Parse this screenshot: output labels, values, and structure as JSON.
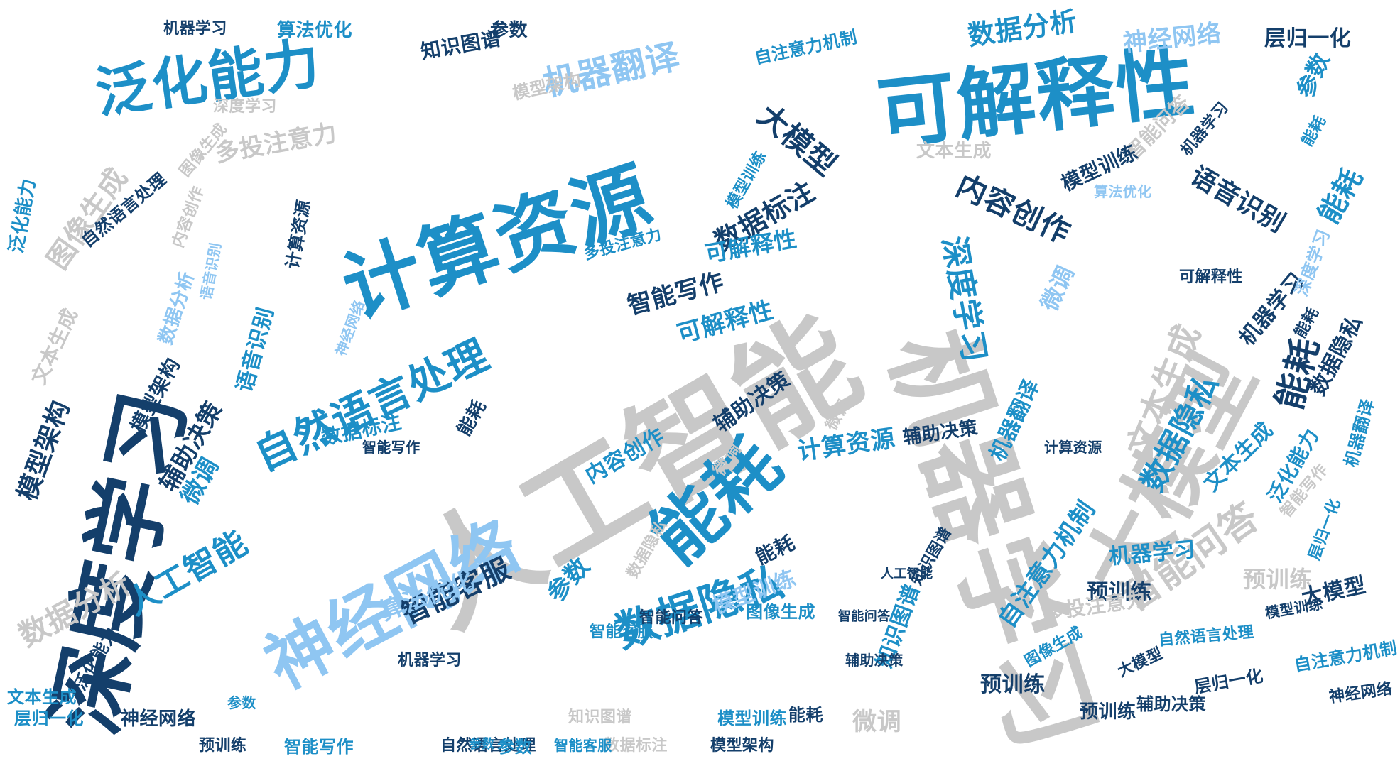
{
  "words": [
    {
      "text": "人工智能",
      "color": "#c8c8c8"
    },
    {
      "text": "机器学习",
      "color": "#c8c8c8"
    },
    {
      "text": "深度学习",
      "color": "#143f6b"
    },
    {
      "text": "计算资源",
      "color": "#1d8fc7"
    },
    {
      "text": "可解释性",
      "color": "#1d8fc7"
    },
    {
      "text": "大模型",
      "color": "#c8c8c8"
    },
    {
      "text": "神经网络",
      "color": "#8fc6f2"
    },
    {
      "text": "泛化能力",
      "color": "#1d8fc7"
    },
    {
      "text": "能耗",
      "color": "#1d8fc7"
    },
    {
      "text": "自然语言处理",
      "color": "#1d8fc7"
    },
    {
      "text": "数据隐私",
      "color": "#1d8fc7"
    },
    {
      "text": "机器翻译",
      "color": "#8fc6f2"
    },
    {
      "text": "内容创作",
      "color": "#143f6b"
    },
    {
      "text": "大模型",
      "color": "#143f6b"
    },
    {
      "text": "数据分析",
      "color": "#1d8fc7"
    },
    {
      "text": "神经网络",
      "color": "#8fc6f2"
    },
    {
      "text": "智能问答",
      "color": "#c8c8c8"
    },
    {
      "text": "文本生成",
      "color": "#c8c8c8"
    },
    {
      "text": "图像生成",
      "color": "#c8c8c8"
    },
    {
      "text": "数据标注",
      "color": "#143f6b"
    },
    {
      "text": "数据隐私",
      "color": "#1d8fc7"
    },
    {
      "text": "深度学习",
      "color": "#1d8fc7"
    },
    {
      "text": "能耗",
      "color": "#143f6b"
    },
    {
      "text": "语音识别",
      "color": "#143f6b"
    },
    {
      "text": "模型架构",
      "color": "#143f6b"
    },
    {
      "text": "智能写作",
      "color": "#143f6b"
    },
    {
      "text": "可解释性",
      "color": "#1d8fc7"
    },
    {
      "text": "可解释性",
      "color": "#1d8fc7"
    },
    {
      "text": "计算资源",
      "color": "#1d8fc7"
    },
    {
      "text": "智能客服",
      "color": "#143f6b"
    },
    {
      "text": "人工智能",
      "color": "#1d8fc7"
    },
    {
      "text": "微调",
      "color": "#1d8fc7"
    },
    {
      "text": "数据分析",
      "color": "#c8c8c8"
    },
    {
      "text": "多投注意力",
      "color": "#c8c8c8"
    },
    {
      "text": "辅助决策",
      "color": "#143f6b"
    },
    {
      "text": "自注意力机制",
      "color": "#1d8fc7"
    },
    {
      "text": "预训练",
      "color": "#143f6b"
    },
    {
      "text": "预训练",
      "color": "#c8c8c8"
    },
    {
      "text": "模型训练",
      "color": "#8fc6f2"
    },
    {
      "text": "算法优化",
      "color": "#8fc6f2"
    },
    {
      "text": "参数",
      "color": "#1d8fc7"
    },
    {
      "text": "参数",
      "color": "#1d8fc7"
    },
    {
      "text": "知识图谱",
      "color": "#143f6b"
    },
    {
      "text": "层归一化",
      "color": "#143f6b"
    },
    {
      "text": "机器学习",
      "color": "#143f6b"
    },
    {
      "text": "算法优化",
      "color": "#1d8fc7"
    },
    {
      "text": "参数",
      "color": "#143f6b"
    },
    {
      "text": "模型架构",
      "color": "#c8c8c8"
    },
    {
      "text": "深度学习",
      "color": "#c8c8c8"
    },
    {
      "text": "图像生成",
      "color": "#c8c8c8"
    },
    {
      "text": "泛化能力",
      "color": "#1d8fc7"
    },
    {
      "text": "自然语言处理",
      "color": "#143f6b"
    },
    {
      "text": "计算资源",
      "color": "#143f6b"
    },
    {
      "text": "语音识别",
      "color": "#1d8fc7"
    },
    {
      "text": "文本生成",
      "color": "#c8c8c8"
    },
    {
      "text": "模型架构",
      "color": "#143f6b"
    },
    {
      "text": "辅助决策",
      "color": "#143f6b"
    },
    {
      "text": "微调",
      "color": "#8fc6f2"
    },
    {
      "text": "微调",
      "color": "#c8c8c8"
    },
    {
      "text": "智能问答",
      "color": "#c8c8c8"
    },
    {
      "text": "数据标注",
      "color": "#1d8fc7"
    },
    {
      "text": "智能写作",
      "color": "#143f6b"
    },
    {
      "text": "能耗",
      "color": "#1d8fc7"
    },
    {
      "text": "数据隐私",
      "color": "#143f6b"
    },
    {
      "text": "机器翻译",
      "color": "#1d8fc7"
    },
    {
      "text": "文本生成",
      "color": "#c8c8c8"
    },
    {
      "text": "能耗",
      "color": "#143f6b"
    },
    {
      "text": "机器学习",
      "color": "#143f6b"
    },
    {
      "text": "大模型",
      "color": "#143f6b"
    },
    {
      "text": "多投注意力",
      "color": "#c8c8c8"
    },
    {
      "text": "机器学习",
      "color": "#1d8fc7"
    },
    {
      "text": "预训练",
      "color": "#143f6b"
    },
    {
      "text": "神经网络",
      "color": "#143f6b"
    },
    {
      "text": "层归一化",
      "color": "#1d8fc7"
    },
    {
      "text": "微调",
      "color": "#c8c8c8"
    },
    {
      "text": "能耗",
      "color": "#143f6b"
    },
    {
      "text": "预训练",
      "color": "#143f6b"
    },
    {
      "text": "文本生成",
      "color": "#1d8fc7"
    },
    {
      "text": "辅助决策",
      "color": "#143f6b"
    },
    {
      "text": "自然语言处理",
      "color": "#1d8fc7"
    },
    {
      "text": "知识图谱",
      "color": "#1d8fc7"
    },
    {
      "text": "内容创作",
      "color": "#1d8fc7"
    },
    {
      "text": "智能客服",
      "color": "#1d8fc7"
    },
    {
      "text": "图像生成",
      "color": "#1d8fc7"
    },
    {
      "text": "参数",
      "color": "#1d8fc7"
    },
    {
      "text": "智能问答",
      "color": "#143f6b"
    },
    {
      "text": "辅助决策",
      "color": "#143f6b"
    },
    {
      "text": "机器学习",
      "color": "#143f6b"
    },
    {
      "text": "多投注意力",
      "color": "#1d8fc7"
    },
    {
      "text": "自注意力机制",
      "color": "#1d8fc7"
    },
    {
      "text": "能耗",
      "color": "#143f6b"
    },
    {
      "text": "大模型",
      "color": "#143f6b"
    },
    {
      "text": "层归一化",
      "color": "#143f6b"
    },
    {
      "text": "神经网络",
      "color": "#143f6b"
    },
    {
      "text": "模型训练",
      "color": "#1d8fc7"
    },
    {
      "text": "知识图谱",
      "color": "#c8c8c8"
    },
    {
      "text": "数据标注",
      "color": "#c8c8c8"
    },
    {
      "text": "智能写作",
      "color": "#1d8fc7"
    },
    {
      "text": "自然语言处理",
      "color": "#143f6b"
    },
    {
      "text": "参数",
      "color": "#1d8fc7"
    },
    {
      "text": "模型架构",
      "color": "#143f6b"
    },
    {
      "text": "文本生成",
      "color": "#1d8fc7"
    },
    {
      "text": "泛化能力",
      "color": "#143f6b"
    },
    {
      "text": "知识图谱",
      "color": "#143f6b"
    },
    {
      "text": "数据隐私",
      "color": "#c8c8c8"
    },
    {
      "text": "机器学习",
      "color": "#143f6b"
    },
    {
      "text": "辅助决策",
      "color": "#143f6b"
    },
    {
      "text": "预训练",
      "color": "#143f6b"
    },
    {
      "text": "微调",
      "color": "#c8c8c8"
    },
    {
      "text": "智能客服",
      "color": "#1d8fc7"
    },
    {
      "text": "计算资源",
      "color": "#143f6b"
    },
    {
      "text": "人工智能",
      "color": "#143f6b"
    },
    {
      "text": "数据分析",
      "color": "#8fc6f2"
    },
    {
      "text": "内容创作",
      "color": "#c8c8c8"
    },
    {
      "text": "语音识别",
      "color": "#8fc6f2"
    },
    {
      "text": "能耗",
      "color": "#143f6b"
    },
    {
      "text": "模型训练",
      "color": "#143f6b"
    },
    {
      "text": "参数",
      "color": "#1d8fc7"
    },
    {
      "text": "智能问答",
      "color": "#143f6b"
    },
    {
      "text": "图像生成",
      "color": "#1d8fc7"
    },
    {
      "text": "算法优化",
      "color": "#8fc6f2"
    },
    {
      "text": "深度学习",
      "color": "#8fc6f2"
    },
    {
      "text": "泛化能力",
      "color": "#1d8fc7"
    },
    {
      "text": "可解释性",
      "color": "#143f6b"
    },
    {
      "text": "机器翻译",
      "color": "#1d8fc7"
    },
    {
      "text": "智能写作",
      "color": "#c8c8c8"
    },
    {
      "text": "层归一化",
      "color": "#1d8fc7"
    },
    {
      "text": "自注意力机制",
      "color": "#1d8fc7"
    },
    {
      "text": "能耗",
      "color": "#1d8fc7"
    },
    {
      "text": "模型训练",
      "color": "#1d8fc7"
    },
    {
      "text": "模型训练",
      "color": "#143f6b"
    },
    {
      "text": "神经网络",
      "color": "#8fc6f2"
    }
  ]
}
